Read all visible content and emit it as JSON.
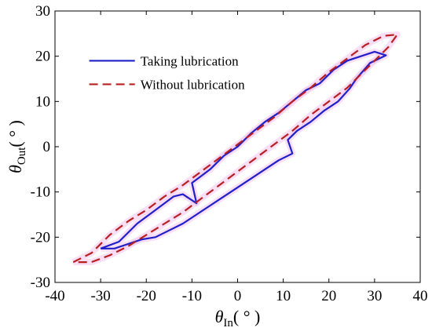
{
  "chart_data": {
    "type": "line",
    "xlabel": {
      "symbol": "θ",
      "subscript": "In",
      "unit": "( ° )"
    },
    "ylabel": {
      "symbol": "θ",
      "subscript": "Out",
      "unit": "( ° )"
    },
    "xlim": [
      -40,
      40
    ],
    "ylim": [
      -30,
      30
    ],
    "xticks": [
      -40,
      -30,
      -20,
      -10,
      0,
      10,
      20,
      30,
      40
    ],
    "yticks": [
      -30,
      -20,
      -10,
      0,
      10,
      20,
      30
    ],
    "grid": false,
    "legend_position": "top-left",
    "series": [
      {
        "name": "Taking lubrication",
        "color": "#1f1fc8",
        "style": "solid",
        "points": [
          [
            -30,
            -22.5
          ],
          [
            -26,
            -21
          ],
          [
            -22,
            -17
          ],
          [
            -18,
            -14
          ],
          [
            -14,
            -11
          ],
          [
            -12,
            -10.5
          ],
          [
            -9,
            -12.5
          ],
          [
            -10,
            -8
          ],
          [
            -6,
            -5
          ],
          [
            -3,
            -2
          ],
          [
            0,
            0
          ],
          [
            3,
            3
          ],
          [
            6,
            5.5
          ],
          [
            9,
            7.5
          ],
          [
            12,
            10
          ],
          [
            15,
            12.5
          ],
          [
            18,
            14
          ],
          [
            21,
            17
          ],
          [
            24,
            19
          ],
          [
            27,
            20
          ],
          [
            30,
            21
          ],
          [
            32.5,
            20.2
          ],
          [
            29,
            18.5
          ],
          [
            26,
            15
          ],
          [
            24.5,
            12.8
          ],
          [
            22,
            10
          ],
          [
            19,
            8
          ],
          [
            16,
            5.5
          ],
          [
            13,
            3.5
          ],
          [
            11,
            1.5
          ],
          [
            12,
            -1.5
          ],
          [
            9,
            -3
          ],
          [
            6,
            -5
          ],
          [
            3,
            -7
          ],
          [
            0,
            -9
          ],
          [
            -3,
            -11
          ],
          [
            -6,
            -13
          ],
          [
            -9,
            -15
          ],
          [
            -12,
            -17
          ],
          [
            -15,
            -18.5
          ],
          [
            -18,
            -20
          ],
          [
            -21,
            -20.5
          ],
          [
            -24,
            -21.5
          ],
          [
            -27,
            -22.5
          ],
          [
            -30,
            -22.5
          ]
        ]
      },
      {
        "name": "Without lubrication",
        "color": "#b81f1f",
        "style": "dashed",
        "points": [
          [
            -36,
            -25.5
          ],
          [
            -32,
            -23.5
          ],
          [
            -28,
            -19.5
          ],
          [
            -24,
            -16.5
          ],
          [
            -20,
            -14
          ],
          [
            -16,
            -11
          ],
          [
            -12,
            -8.5
          ],
          [
            -8,
            -5.5
          ],
          [
            -4,
            -2.5
          ],
          [
            0,
            0.5
          ],
          [
            4,
            3.5
          ],
          [
            8,
            6.5
          ],
          [
            12,
            10
          ],
          [
            16,
            13
          ],
          [
            20,
            16.5
          ],
          [
            24,
            19.5
          ],
          [
            28,
            22.5
          ],
          [
            32,
            24.5
          ],
          [
            35,
            24.8
          ],
          [
            33,
            22
          ],
          [
            30,
            19
          ],
          [
            27,
            16
          ],
          [
            24,
            13
          ],
          [
            20,
            10
          ],
          [
            16,
            7
          ],
          [
            12,
            3.5
          ],
          [
            8,
            0.5
          ],
          [
            4,
            -2.5
          ],
          [
            0,
            -5.5
          ],
          [
            -4,
            -8.5
          ],
          [
            -8,
            -11.5
          ],
          [
            -12,
            -14.5
          ],
          [
            -16,
            -17
          ],
          [
            -20,
            -19.5
          ],
          [
            -24,
            -22
          ],
          [
            -28,
            -24
          ],
          [
            -32,
            -25.5
          ],
          [
            -36,
            -25.5
          ]
        ]
      }
    ]
  }
}
